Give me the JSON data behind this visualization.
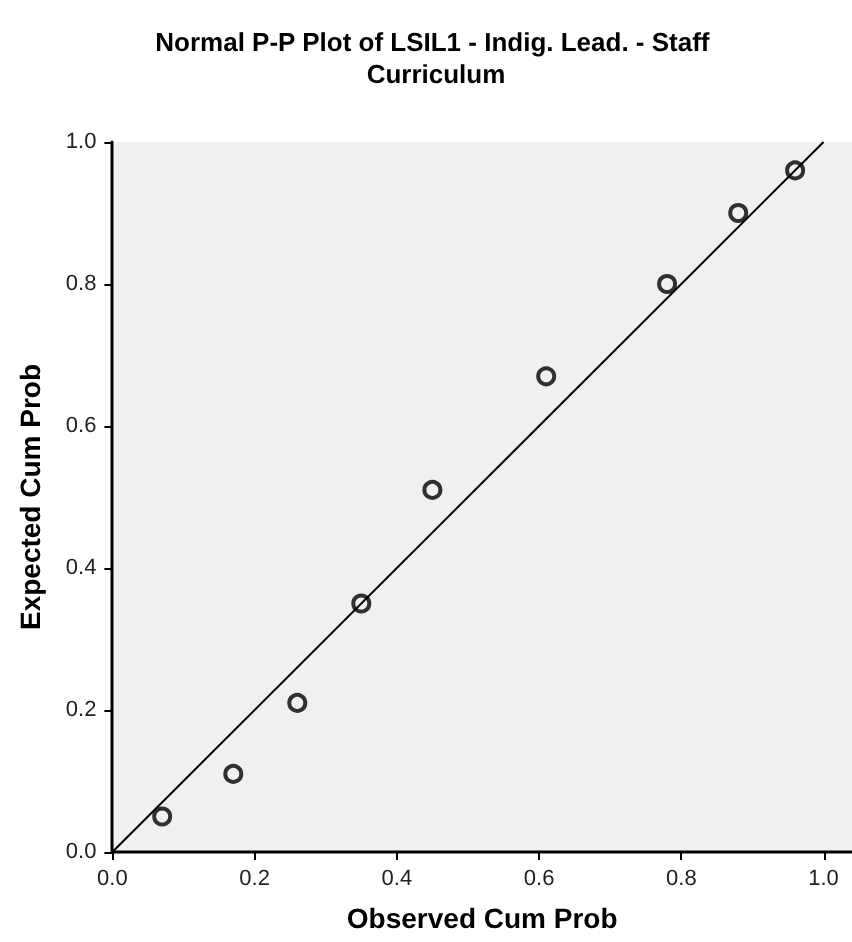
{
  "chart_data": {
    "type": "scatter",
    "title": "Normal P-P Plot of LSIL1 - Indig. Lead. - Staff Curriculum",
    "xlabel": "Observed Cum Prob",
    "ylabel": "Expected Cum Prob",
    "x": [
      0.07,
      0.17,
      0.26,
      0.35,
      0.45,
      0.61,
      0.78,
      0.88,
      0.96
    ],
    "series": [
      {
        "color": "#000000",
        "marker": "circle",
        "values": [
          0.05,
          0.11,
          0.21,
          0.35,
          0.51,
          0.67,
          0.8,
          0.9,
          0.96
        ]
      },
      {
        "type": "line",
        "color": "#000000",
        "marker": "none",
        "x": [
          0,
          1
        ],
        "values": [
          0,
          1
        ]
      }
    ],
    "xlim": [
      0,
      1.04
    ],
    "ylim": [
      0,
      1
    ],
    "xticks": [
      {
        "value": 0,
        "label": "0.0"
      },
      {
        "value": 0.2,
        "label": "0.2"
      },
      {
        "value": 0.4,
        "label": "0.4"
      },
      {
        "value": 0.6,
        "label": "0.6"
      },
      {
        "value": 0.8,
        "label": "0.8"
      },
      {
        "value": 1,
        "label": "1.0"
      }
    ],
    "yticks": [
      {
        "value": 0,
        "label": "0.0"
      },
      {
        "value": 0.2,
        "label": "0.2"
      },
      {
        "value": 0.4,
        "label": "0.4"
      },
      {
        "value": 0.6,
        "label": "0.6"
      },
      {
        "value": 0.8,
        "label": "0.8"
      },
      {
        "value": 1,
        "label": "1.0"
      }
    ],
    "grid": false
  }
}
